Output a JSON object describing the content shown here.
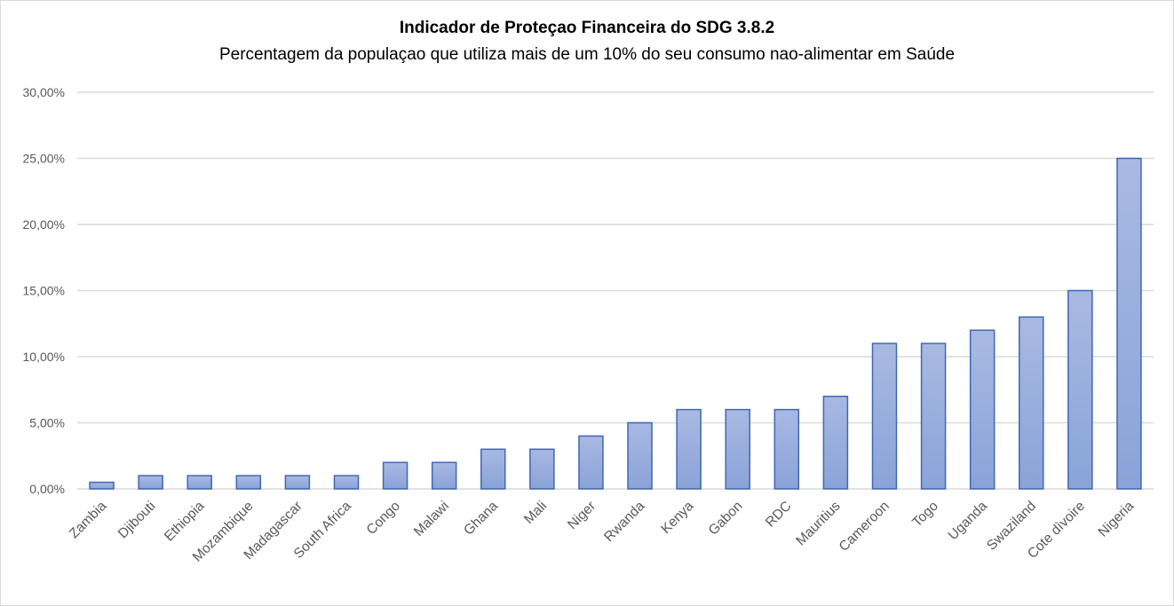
{
  "chart_data": {
    "type": "bar",
    "title": "Indicador de Proteçao Financeira do SDG 3.8.2",
    "subtitle": "Percentagem da populaçao que utiliza mais de um 10% do seu consumo nao-alimentar em Saúde",
    "xlabel": "",
    "ylabel": "",
    "categories": [
      "Zambia",
      "Djibouti",
      "Ethiopia",
      "Mozambique",
      "Madagascar",
      "South Africa",
      "Congo",
      "Malawi",
      "Ghana",
      "Mali",
      "Niger",
      "Rwanda",
      "Kenya",
      "Gabon",
      "RDC",
      "Mauritius",
      "Cameroon",
      "Togo",
      "Uganda",
      "Swaziland",
      "Cote dìvoire",
      "Nigeria"
    ],
    "values": [
      0.5,
      1,
      1,
      1,
      1,
      1,
      2,
      2,
      3,
      3,
      4,
      5,
      6,
      6,
      6,
      7,
      11,
      11,
      12,
      13,
      15,
      25
    ],
    "ylim": [
      0,
      30
    ],
    "yticks": [
      "0,00%",
      "5,00%",
      "10,00%",
      "15,00%",
      "20,00%",
      "25,00%",
      "30,00%"
    ],
    "grid": true,
    "legend": "none",
    "colors": {
      "bar_fill_top": "#a9b9e3",
      "bar_fill_bottom": "#8aa3d8",
      "bar_stroke": "#3f68b0",
      "grid": "#d9d9d9"
    }
  }
}
